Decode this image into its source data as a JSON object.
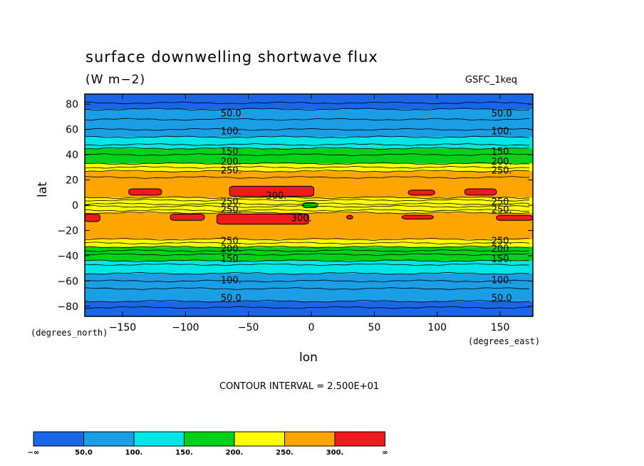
{
  "chart_data": {
    "type": "heatmap",
    "title": "surface downwelling shortwave flux",
    "units": "(W m−2)",
    "dataset": "GSFC_1keq",
    "xlabel": "lon",
    "ylabel": "lat",
    "x_units": "(degrees_east)",
    "y_units": "(degrees_north)",
    "xlim": [
      -180,
      176
    ],
    "ylim": [
      -88,
      88
    ],
    "x_ticks": [
      "−150",
      "−100",
      "−50",
      "0",
      "50",
      "100",
      "150"
    ],
    "x_tick_values": [
      -150,
      -100,
      -50,
      0,
      50,
      100,
      150
    ],
    "y_ticks": [
      "80",
      "60",
      "40",
      "20",
      "0",
      "−20",
      "−40",
      "−60",
      "−80"
    ],
    "y_tick_values": [
      80,
      60,
      40,
      20,
      0,
      -20,
      -40,
      -60,
      -80
    ],
    "contour_interval_text": "CONTOUR INTERVAL = 2.500E+01",
    "contour_levels": [
      50,
      100,
      150,
      200,
      250,
      300
    ],
    "colorbar": {
      "labels": [
        "−∞",
        "50.0",
        "100.",
        "150.",
        "200.",
        "250.",
        "300.",
        "∞"
      ],
      "colors": [
        "#1a66e6",
        "#1a9ee6",
        "#00e6e6",
        "#00d11a",
        "#ffff00",
        "#ffa500",
        "#f01a1a"
      ]
    },
    "bands": [
      {
        "lat_min": 76,
        "lat_max": 88,
        "color": "#1a66e6"
      },
      {
        "lat_min": 54,
        "lat_max": 76,
        "color": "#1a9ee6"
      },
      {
        "lat_min": 45,
        "lat_max": 54,
        "color": "#00e6e6"
      },
      {
        "lat_min": 33,
        "lat_max": 45,
        "color": "#00d11a"
      },
      {
        "lat_min": 27,
        "lat_max": 33,
        "color": "#ffff00"
      },
      {
        "lat_min": 6,
        "lat_max": 27,
        "color": "#ffa500"
      },
      {
        "lat_min": -6,
        "lat_max": 6,
        "color": "#ffff00"
      },
      {
        "lat_min": -27,
        "lat_max": -6,
        "color": "#ffa500"
      },
      {
        "lat_min": -33,
        "lat_max": -27,
        "color": "#ffff00"
      },
      {
        "lat_min": -44,
        "lat_max": -33,
        "color": "#00d11a"
      },
      {
        "lat_min": -54,
        "lat_max": -44,
        "color": "#00e6e6"
      },
      {
        "lat_min": -76,
        "lat_max": -54,
        "color": "#1a9ee6"
      },
      {
        "lat_min": -88,
        "lat_max": -76,
        "color": "#1a66e6"
      }
    ],
    "contour_lines_lat": [
      81,
      76,
      68,
      60,
      54,
      48,
      45,
      40,
      33,
      30,
      27,
      22,
      6,
      4,
      1,
      -1,
      -4,
      -6,
      -27,
      -30,
      -33,
      -36,
      -39,
      -44,
      -47,
      -54,
      -60,
      -66,
      -76,
      -81
    ],
    "patches": [
      {
        "level": "300",
        "color": "#f01a1a",
        "x0": -145,
        "x1": -119,
        "y0": 8,
        "y1": 13
      },
      {
        "level": "300",
        "color": "#f01a1a",
        "x0": -65,
        "x1": 2,
        "y0": 7,
        "y1": 15
      },
      {
        "level": "300",
        "color": "#f01a1a",
        "x0": 77,
        "x1": 98,
        "y0": 8,
        "y1": 12
      },
      {
        "level": "300",
        "color": "#f01a1a",
        "x0": 122,
        "x1": 147,
        "y0": 8,
        "y1": 13
      },
      {
        "level": "300",
        "color": "#f01a1a",
        "x0": -180,
        "x1": -168,
        "y0": -13,
        "y1": -7
      },
      {
        "level": "300",
        "color": "#f01a1a",
        "x0": -112,
        "x1": -85,
        "y0": -12,
        "y1": -7
      },
      {
        "level": "300",
        "color": "#f01a1a",
        "x0": -75,
        "x1": -2,
        "y0": -15,
        "y1": -7
      },
      {
        "level": "300",
        "color": "#f01a1a",
        "x0": 28,
        "x1": 33,
        "y0": -11,
        "y1": -8
      },
      {
        "level": "300",
        "color": "#f01a1a",
        "x0": 72,
        "x1": 97,
        "y0": -11,
        "y1": -8
      },
      {
        "level": "300",
        "color": "#f01a1a",
        "x0": 147,
        "x1": 176,
        "y0": -12,
        "y1": -8
      },
      {
        "level": "150",
        "color": "#00d11a",
        "x0": -7,
        "x1": 5,
        "y0": -2,
        "y1": 2
      }
    ],
    "line_labels": [
      {
        "text": "50.0",
        "lon": -72,
        "lat": 73
      },
      {
        "text": "50.0",
        "lon": 143,
        "lat": 73
      },
      {
        "text": "100.",
        "lon": -72,
        "lat": 59
      },
      {
        "text": "100.",
        "lon": 143,
        "lat": 59
      },
      {
        "text": "150.",
        "lon": -72,
        "lat": 43
      },
      {
        "text": "150.",
        "lon": 143,
        "lat": 43
      },
      {
        "text": "200.",
        "lon": -72,
        "lat": 35
      },
      {
        "text": "200.",
        "lon": 143,
        "lat": 35
      },
      {
        "text": "250.",
        "lon": -72,
        "lat": 28
      },
      {
        "text": "250.",
        "lon": 143,
        "lat": 28
      },
      {
        "text": "300.",
        "lon": -36,
        "lat": 8
      },
      {
        "text": "250.",
        "lon": -72,
        "lat": 3
      },
      {
        "text": "250.",
        "lon": 143,
        "lat": 3
      },
      {
        "text": "250.",
        "lon": -72,
        "lat": -3
      },
      {
        "text": "250.",
        "lon": 143,
        "lat": -3
      },
      {
        "text": "300.",
        "lon": -16,
        "lat": -10
      },
      {
        "text": "250.",
        "lon": -72,
        "lat": -28
      },
      {
        "text": "250.",
        "lon": 143,
        "lat": -28
      },
      {
        "text": "200.",
        "lon": -72,
        "lat": -34
      },
      {
        "text": "200.",
        "lon": 143,
        "lat": -34
      },
      {
        "text": "150.",
        "lon": -72,
        "lat": -42
      },
      {
        "text": "150.",
        "lon": 143,
        "lat": -42
      },
      {
        "text": "100.",
        "lon": -72,
        "lat": -59
      },
      {
        "text": "100.",
        "lon": 143,
        "lat": -59
      },
      {
        "text": "50.0",
        "lon": -72,
        "lat": -73
      },
      {
        "text": "50.0",
        "lon": 143,
        "lat": -73
      }
    ]
  }
}
